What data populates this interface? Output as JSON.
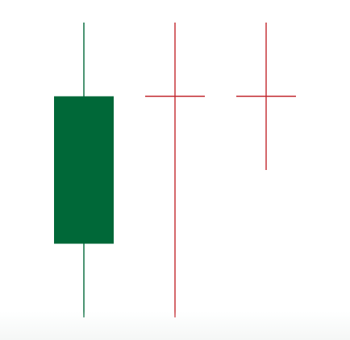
{
  "chart_data": {
    "type": "candlestick",
    "grid": false,
    "legend": "none",
    "ylim": [
      0,
      100
    ],
    "candles": [
      {
        "open": 25,
        "high": 100,
        "low": 0,
        "close": 75,
        "direction": "up",
        "color": "#006838"
      },
      {
        "open": 75,
        "high": 100,
        "low": 0,
        "close": 75,
        "direction": "doji",
        "color": "#c1272d"
      },
      {
        "open": 75,
        "high": 100,
        "low": 50,
        "close": 75,
        "direction": "doji",
        "color": "#c1272d"
      }
    ]
  }
}
